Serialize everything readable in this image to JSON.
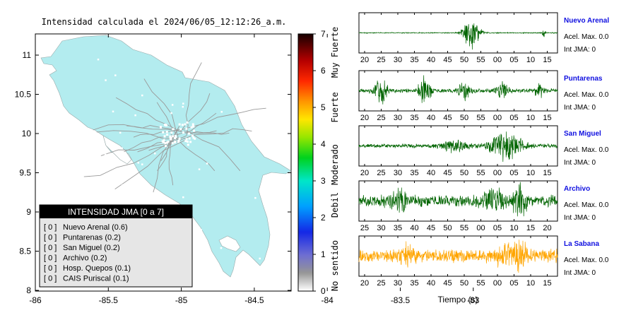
{
  "map": {
    "title": "Intensidad calculada el 2024/06/05_12:12:26_a.m.",
    "x_ticks": [
      "-86",
      "-85.5",
      "-85",
      "-84.5",
      "-84",
      "-83.5",
      "-83"
    ],
    "y_ticks": [
      "11",
      "10.5",
      "10",
      "9.5",
      "9",
      "8.5",
      "8"
    ],
    "land_color": "#b3ecef",
    "legend": {
      "title": "INTENSIDAD JMA [0 a 7]",
      "items": [
        {
          "level": "[ 0 ]",
          "label": "Nuevo Arenal (0.6)"
        },
        {
          "level": "[ 0 ]",
          "label": "Puntarenas (0.2)"
        },
        {
          "level": "[ 0 ]",
          "label": "San Miguel (0.2)"
        },
        {
          "level": "[ 0 ]",
          "label": "Archivo (0.2)"
        },
        {
          "level": "[ 0 ]",
          "label": "Hosp. Quepos (0.1)"
        },
        {
          "level": "[ 0 ]",
          "label": "CAIS Puriscal (0.1)"
        }
      ]
    }
  },
  "colorbar": {
    "ticks": [
      "7",
      "6",
      "5",
      "4",
      "3",
      "2",
      "1",
      "0"
    ],
    "category_labels": [
      "Muy Fuerte",
      "Fuerte",
      "Moderado",
      "Debil",
      "No sentido"
    ]
  },
  "chart_data": {
    "type": "line",
    "xlabel": "Tiempo (s)",
    "stations": [
      {
        "name": "Nuevo Arenal",
        "accel_label": "Acel. Max. 0.0",
        "int_label": "Int JMA: 0",
        "color": "#006400",
        "x_ticks": [
          "20",
          "25",
          "30",
          "35",
          "40",
          "45",
          "50",
          "55",
          "00",
          "05",
          "10",
          "15"
        ],
        "bursts": [
          [
            0.57,
            0.04,
            1.0
          ],
          [
            0.93,
            0.01,
            0.3
          ]
        ],
        "noise": 0.03,
        "seed": 3
      },
      {
        "name": "Puntarenas",
        "accel_label": "Acel. Max. 0.0",
        "int_label": "Int JMA: 0",
        "color": "#006400",
        "x_ticks": [
          "20",
          "25",
          "30",
          "35",
          "40",
          "45",
          "50",
          "55",
          "00",
          "05",
          "10",
          "15"
        ],
        "bursts": [
          [
            0.11,
            0.03,
            0.8
          ],
          [
            0.33,
            0.03,
            0.9
          ],
          [
            0.53,
            0.03,
            0.5
          ],
          [
            0.72,
            0.03,
            0.5
          ],
          [
            0.91,
            0.02,
            0.6
          ]
        ],
        "noise": 0.12,
        "seed": 7
      },
      {
        "name": "San Miguel",
        "accel_label": "Acel. Max. 0.0",
        "int_label": "Int JMA: 0",
        "color": "#006400",
        "x_ticks": [
          "20",
          "25",
          "30",
          "35",
          "40",
          "45",
          "50",
          "55",
          "00",
          "05",
          "10",
          "15"
        ],
        "bursts": [
          [
            0.74,
            0.07,
            1.0
          ],
          [
            0.48,
            0.07,
            0.35
          ]
        ],
        "noise": 0.12,
        "seed": 11
      },
      {
        "name": "Archivo",
        "accel_label": "Acel. Max. 0.0",
        "int_label": "Int JMA: 0",
        "color": "#006400",
        "x_ticks": [
          "25",
          "30",
          "35",
          "40",
          "45",
          "50",
          "55",
          "00",
          "05",
          "10",
          "15",
          "20"
        ],
        "bursts": [
          [
            0.81,
            0.03,
            1.0
          ],
          [
            0.68,
            0.05,
            0.6
          ],
          [
            0.2,
            0.05,
            0.5
          ]
        ],
        "noise": 0.35,
        "seed": 17
      },
      {
        "name": "La Sabana",
        "accel_label": "Acel. Max. 0.0",
        "int_label": "Int JMA: 0",
        "color": "#ffa500",
        "x_ticks": [
          "20",
          "25",
          "30",
          "35",
          "40",
          "45",
          "50",
          "55",
          "00",
          "05",
          "10",
          "15"
        ],
        "bursts": [
          [
            0.81,
            0.03,
            1.0
          ],
          [
            0.73,
            0.03,
            0.8
          ],
          [
            0.25,
            0.04,
            0.55
          ]
        ],
        "noise": 0.4,
        "seed": 23
      }
    ]
  }
}
